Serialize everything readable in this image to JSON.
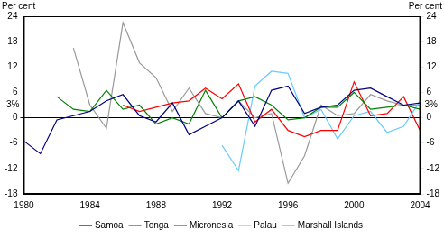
{
  "chart_data": {
    "type": "line",
    "y_label": "Per cent",
    "x": [
      1980,
      1981,
      1982,
      1983,
      1984,
      1985,
      1986,
      1987,
      1988,
      1989,
      1990,
      1991,
      1992,
      1993,
      1994,
      1995,
      1996,
      1997,
      1998,
      1999,
      2000,
      2001,
      2002,
      2003,
      2004
    ],
    "series": [
      {
        "name": "Samoa",
        "color": "#000080",
        "values": [
          -5.5,
          -8.5,
          -0.5,
          0.5,
          1.5,
          4,
          5.5,
          0.5,
          -1,
          3.5,
          -4,
          -2,
          0,
          4,
          -2,
          6.5,
          7.5,
          1,
          2.5,
          3,
          6.5,
          7,
          5,
          3,
          3.5
        ]
      },
      {
        "name": "Tonga",
        "color": "#008000",
        "values": [
          null,
          null,
          5,
          2,
          1.5,
          6.5,
          2,
          3,
          -1.5,
          0,
          -1.5,
          6.5,
          0,
          4,
          5,
          3,
          -0.5,
          0,
          2.5,
          2.5,
          6,
          2,
          2.5,
          3,
          2
        ]
      },
      {
        "name": "Micronesia",
        "color": "#ff0000",
        "values": [
          null,
          null,
          null,
          null,
          null,
          null,
          3,
          1.5,
          2.5,
          3.5,
          4,
          7,
          4.5,
          8,
          -1,
          2,
          -3,
          -4.5,
          -3,
          -3,
          8.5,
          0.5,
          1,
          5,
          -3
        ]
      },
      {
        "name": "Palau",
        "color": "#66ccff",
        "values": [
          null,
          null,
          null,
          null,
          null,
          null,
          null,
          null,
          null,
          null,
          null,
          null,
          -6.5,
          -12.5,
          7.5,
          11,
          10.5,
          0,
          2,
          -5,
          0.5,
          1.5,
          -3.5,
          -2,
          4
        ]
      },
      {
        "name": "Marshall Islands",
        "color": "#999999",
        "values": [
          null,
          null,
          null,
          16.5,
          3,
          -2.5,
          22.5,
          13,
          9.5,
          1.5,
          7,
          1,
          0,
          4,
          0,
          1,
          -15.5,
          -9,
          3,
          0.5,
          1,
          5.5,
          4,
          3,
          3
        ]
      }
    ],
    "annotations": [
      {
        "y": 3,
        "label": "3%"
      }
    ],
    "xlim": [
      1980,
      2004
    ],
    "xticks": [
      1980,
      1984,
      1988,
      1992,
      1996,
      2000,
      2004
    ],
    "ylim": [
      -18,
      24
    ],
    "yticks": [
      -18,
      -12,
      -6,
      0,
      6,
      12,
      18,
      24
    ],
    "grid": false,
    "legend": "bottom"
  }
}
